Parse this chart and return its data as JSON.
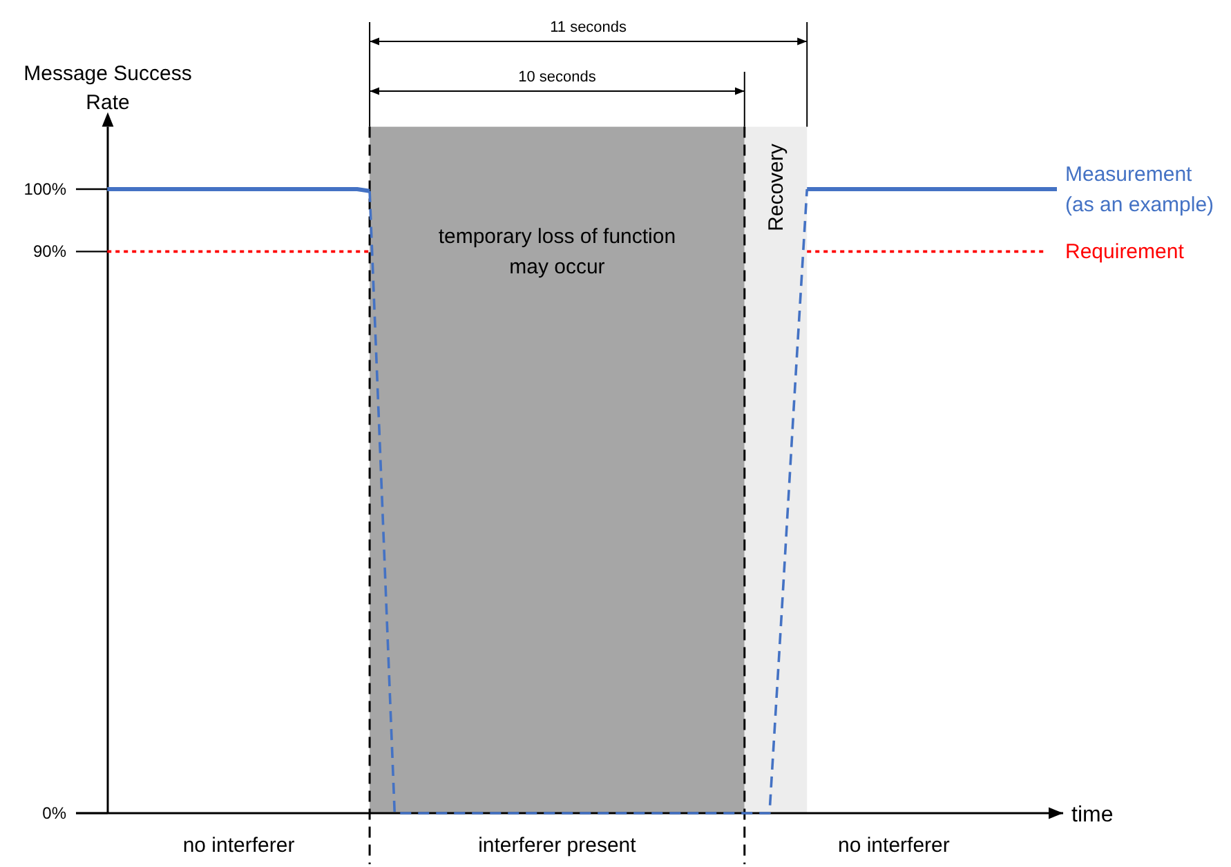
{
  "chart_data": {
    "type": "line",
    "xlabel": "time",
    "ylabel": "Message Success Rate",
    "ylim": [
      0,
      110
    ],
    "yticks": [
      {
        "value": 0,
        "label": "0%"
      },
      {
        "value": 90,
        "label": "90%"
      },
      {
        "value": 100,
        "label": "100%"
      }
    ],
    "tick_labels": "y",
    "legend": false,
    "categories": [
      null,
      null,
      null,
      null,
      null,
      null,
      null,
      null,
      null,
      null,
      null,
      null,
      null,
      null,
      null,
      null,
      null,
      null,
      null,
      null,
      null,
      null,
      null,
      null,
      null,
      null,
      null,
      null,
      null,
      null,
      null,
      null,
      null,
      null,
      null,
      null,
      null,
      null,
      null,
      null,
      null,
      null,
      null,
      null,
      null,
      null,
      null,
      null,
      null,
      null,
      null,
      null,
      null,
      null,
      null,
      null,
      null,
      null,
      null,
      null,
      null,
      null,
      null,
      null,
      null,
      null,
      null,
      null,
      null,
      null,
      null,
      null,
      null,
      null,
      null,
      null,
      null,
      null,
      null
    ],
    "series": [
      {
        "name": "Measurement\n(as an example)",
        "color": "#4472c4",
        "line_style": "solid",
        "values": [
          null,
          null,
          100,
          100,
          100,
          100,
          100,
          100,
          100,
          100,
          100,
          100,
          100,
          100,
          100,
          100,
          100,
          100,
          100,
          100,
          100,
          100,
          100,
          99.7,
          null,
          null,
          null,
          null,
          null,
          null,
          null,
          null,
          null,
          null,
          null,
          null,
          null,
          null,
          null,
          null,
          null,
          null,
          null,
          null,
          null,
          null,
          null,
          null,
          null,
          null,
          null,
          null,
          null,
          null,
          null,
          null,
          null,
          null,
          100,
          100,
          100,
          100,
          100,
          100,
          100,
          100,
          100,
          100,
          100,
          100,
          100,
          100,
          100,
          100,
          100,
          100,
          100,
          100,
          100
        ]
      },
      {
        "color": "#4472c4",
        "line_style": "dashed",
        "values": [
          null,
          null,
          null,
          null,
          null,
          null,
          null,
          null,
          null,
          null,
          null,
          null,
          null,
          null,
          null,
          null,
          null,
          null,
          null,
          null,
          null,
          null,
          null,
          99.7,
          50,
          0,
          0,
          0,
          0,
          0,
          0,
          0,
          0,
          0,
          0,
          0,
          0,
          0,
          0,
          0,
          0,
          0,
          0,
          0,
          0,
          0,
          0,
          0,
          0,
          0,
          0,
          0,
          0,
          0,
          0,
          0,
          33,
          67,
          100,
          null,
          null,
          null,
          null,
          null,
          null,
          null,
          null,
          null,
          null,
          null,
          null,
          null,
          null,
          null,
          null,
          null,
          null,
          null,
          null
        ]
      },
      {
        "name": "Requirement",
        "color": "#ff0000",
        "line_style": "dotted",
        "values": [
          null,
          null,
          90,
          90,
          90,
          90,
          90,
          90,
          90,
          90,
          90,
          90,
          90,
          90,
          90,
          90,
          90,
          90,
          90,
          90,
          90,
          90,
          90,
          90,
          null,
          null,
          null,
          null,
          null,
          null,
          null,
          null,
          null,
          null,
          null,
          null,
          null,
          null,
          null,
          null,
          null,
          null,
          null,
          null,
          null,
          null,
          null,
          null,
          null,
          null,
          null,
          null,
          null,
          null,
          null,
          null,
          null,
          null,
          90,
          90,
          90,
          90,
          90,
          90,
          90,
          90,
          90,
          90,
          90,
          90,
          90,
          90,
          90,
          90,
          90,
          90,
          90,
          90,
          null
        ]
      }
    ],
    "annotations": [
      "11 seconds",
      "10 seconds",
      "temporary loss of function\nmay occur",
      "Recovery",
      "no interferer",
      "interferer present",
      "no interferer"
    ]
  }
}
